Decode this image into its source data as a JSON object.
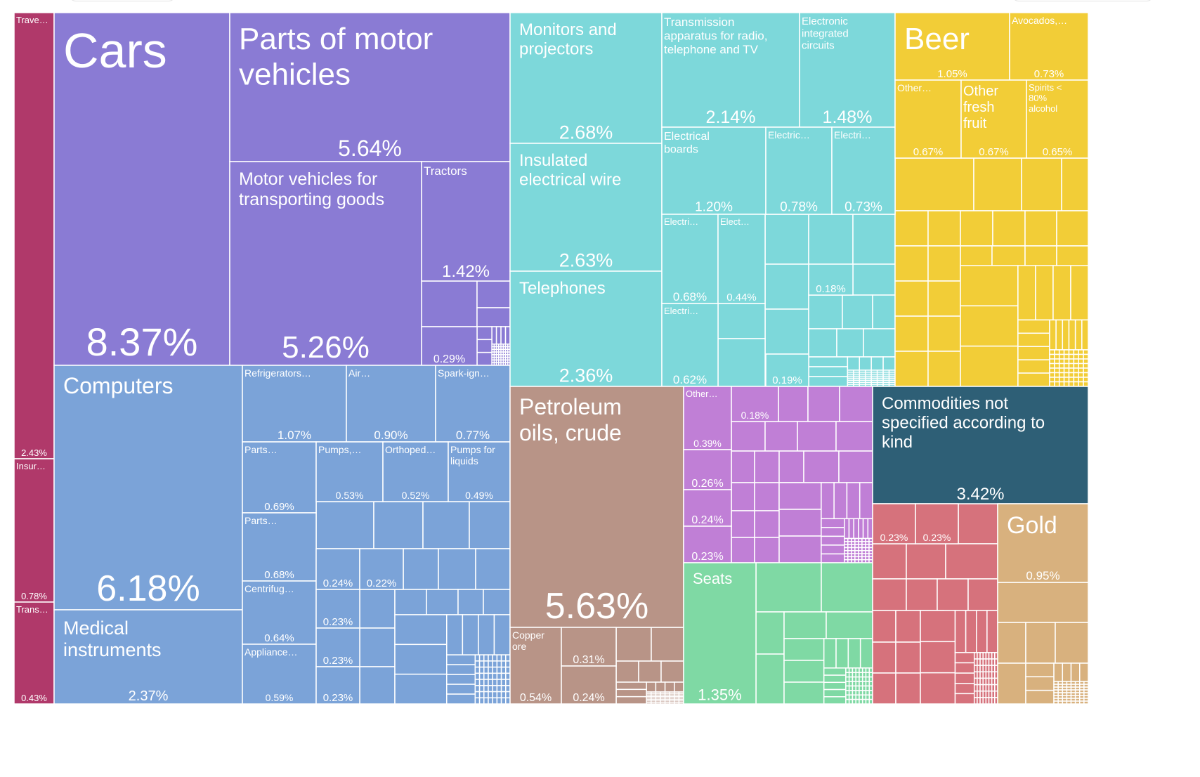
{
  "chart_data": {
    "type": "treemap",
    "colors": {
      "services": "#b0396a",
      "vehicles": "#8a7bd4",
      "machines": "#7ba3d8",
      "electronics": "#7dd8da",
      "foodstuffs": "#f2cd37",
      "mineral": "#b89487",
      "chemicals": "#c07fd6",
      "misc_goods": "#7fd9a4",
      "not_specified": "#2e5f76",
      "metals": "#d6727c",
      "precious": "#d8b17e"
    },
    "labeled_items": [
      {
        "name": "Trave…",
        "value": "2.43%",
        "group": "services"
      },
      {
        "name": "Insur…",
        "value": "0.78%",
        "group": "services"
      },
      {
        "name": "Trans…",
        "value": "0.43%",
        "group": "services"
      },
      {
        "name": "Cars",
        "value": "8.37%",
        "group": "vehicles"
      },
      {
        "name": "Parts of motor vehicles",
        "value": "5.64%",
        "group": "vehicles"
      },
      {
        "name": "Motor vehicles for transporting goods",
        "value": "5.26%",
        "group": "vehicles"
      },
      {
        "name": "Tractors",
        "value": "1.42%",
        "group": "vehicles"
      },
      {
        "name": "",
        "value": "0.29%",
        "group": "vehicles"
      },
      {
        "name": "Computers",
        "value": "6.18%",
        "group": "machines"
      },
      {
        "name": "Medical instruments",
        "value": "2.37%",
        "group": "machines"
      },
      {
        "name": "Refrigerators…",
        "value": "1.07%",
        "group": "machines"
      },
      {
        "name": "Air…",
        "value": "0.90%",
        "group": "machines"
      },
      {
        "name": "Spark-ign…",
        "value": "0.77%",
        "group": "machines"
      },
      {
        "name": "Parts…",
        "value": "0.69%",
        "group": "machines"
      },
      {
        "name": "Pumps,…",
        "value": "0.53%",
        "group": "machines"
      },
      {
        "name": "Orthoped…",
        "value": "0.52%",
        "group": "machines"
      },
      {
        "name": "Pumps for liquids",
        "value": "0.49%",
        "group": "machines"
      },
      {
        "name": "Parts…",
        "value": "0.68%",
        "group": "machines"
      },
      {
        "name": "Centrifug…",
        "value": "0.64%",
        "group": "machines"
      },
      {
        "name": "Appliance…",
        "value": "0.59%",
        "group": "machines"
      },
      {
        "name": "",
        "value": "0.24%",
        "group": "machines"
      },
      {
        "name": "",
        "value": "0.22%",
        "group": "machines"
      },
      {
        "name": "",
        "value": "0.23%",
        "group": "machines"
      },
      {
        "name": "",
        "value": "0.23%",
        "group": "machines"
      },
      {
        "name": "",
        "value": "0.23%",
        "group": "machines"
      },
      {
        "name": "Monitors and projectors",
        "value": "2.68%",
        "group": "electronics"
      },
      {
        "name": "Insulated electrical wire",
        "value": "2.63%",
        "group": "electronics"
      },
      {
        "name": "Telephones",
        "value": "2.36%",
        "group": "electronics"
      },
      {
        "name": "Transmission apparatus for radio, telephone and TV",
        "value": "2.14%",
        "group": "electronics"
      },
      {
        "name": "Electronic integrated circuits",
        "value": "1.48%",
        "group": "electronics"
      },
      {
        "name": "Electrical boards",
        "value": "1.20%",
        "group": "electronics"
      },
      {
        "name": "Electric…",
        "value": "0.78%",
        "group": "electronics"
      },
      {
        "name": "Electri…",
        "value": "0.73%",
        "group": "electronics"
      },
      {
        "name": "Electri…",
        "value": "0.68%",
        "group": "electronics"
      },
      {
        "name": "Elect…",
        "value": "0.44%",
        "group": "electronics"
      },
      {
        "name": "Electri…",
        "value": "0.62%",
        "group": "electronics"
      },
      {
        "name": "",
        "value": "0.18%",
        "group": "electronics"
      },
      {
        "name": "",
        "value": "0.19%",
        "group": "electronics"
      },
      {
        "name": "Beer",
        "value": "1.05%",
        "group": "foodstuffs"
      },
      {
        "name": "Avocados,…",
        "value": "0.73%",
        "group": "foodstuffs"
      },
      {
        "name": "Other…",
        "value": "0.67%",
        "group": "foodstuffs"
      },
      {
        "name": "Other fresh fruit",
        "value": "0.67%",
        "group": "foodstuffs"
      },
      {
        "name": "Spirits < 80% alcohol",
        "value": "0.65%",
        "group": "foodstuffs"
      },
      {
        "name": "Petroleum oils, crude",
        "value": "5.63%",
        "group": "mineral"
      },
      {
        "name": "Copper ore",
        "value": "0.54%",
        "group": "mineral"
      },
      {
        "name": "",
        "value": "0.31%",
        "group": "mineral"
      },
      {
        "name": "",
        "value": "0.24%",
        "group": "mineral"
      },
      {
        "name": "Other…",
        "value": "0.39%",
        "group": "chemicals"
      },
      {
        "name": "",
        "value": "0.18%",
        "group": "chemicals"
      },
      {
        "name": "",
        "value": "0.26%",
        "group": "chemicals"
      },
      {
        "name": "",
        "value": "0.24%",
        "group": "chemicals"
      },
      {
        "name": "",
        "value": "0.23%",
        "group": "chemicals"
      },
      {
        "name": "Seats",
        "value": "1.35%",
        "group": "misc_goods"
      },
      {
        "name": "Commodities not specified according to kind",
        "value": "3.42%",
        "group": "not_specified"
      },
      {
        "name": "",
        "value": "0.23%",
        "group": "metals"
      },
      {
        "name": "",
        "value": "0.23%",
        "group": "metals"
      },
      {
        "name": "Gold",
        "value": "0.95%",
        "group": "precious"
      }
    ]
  }
}
